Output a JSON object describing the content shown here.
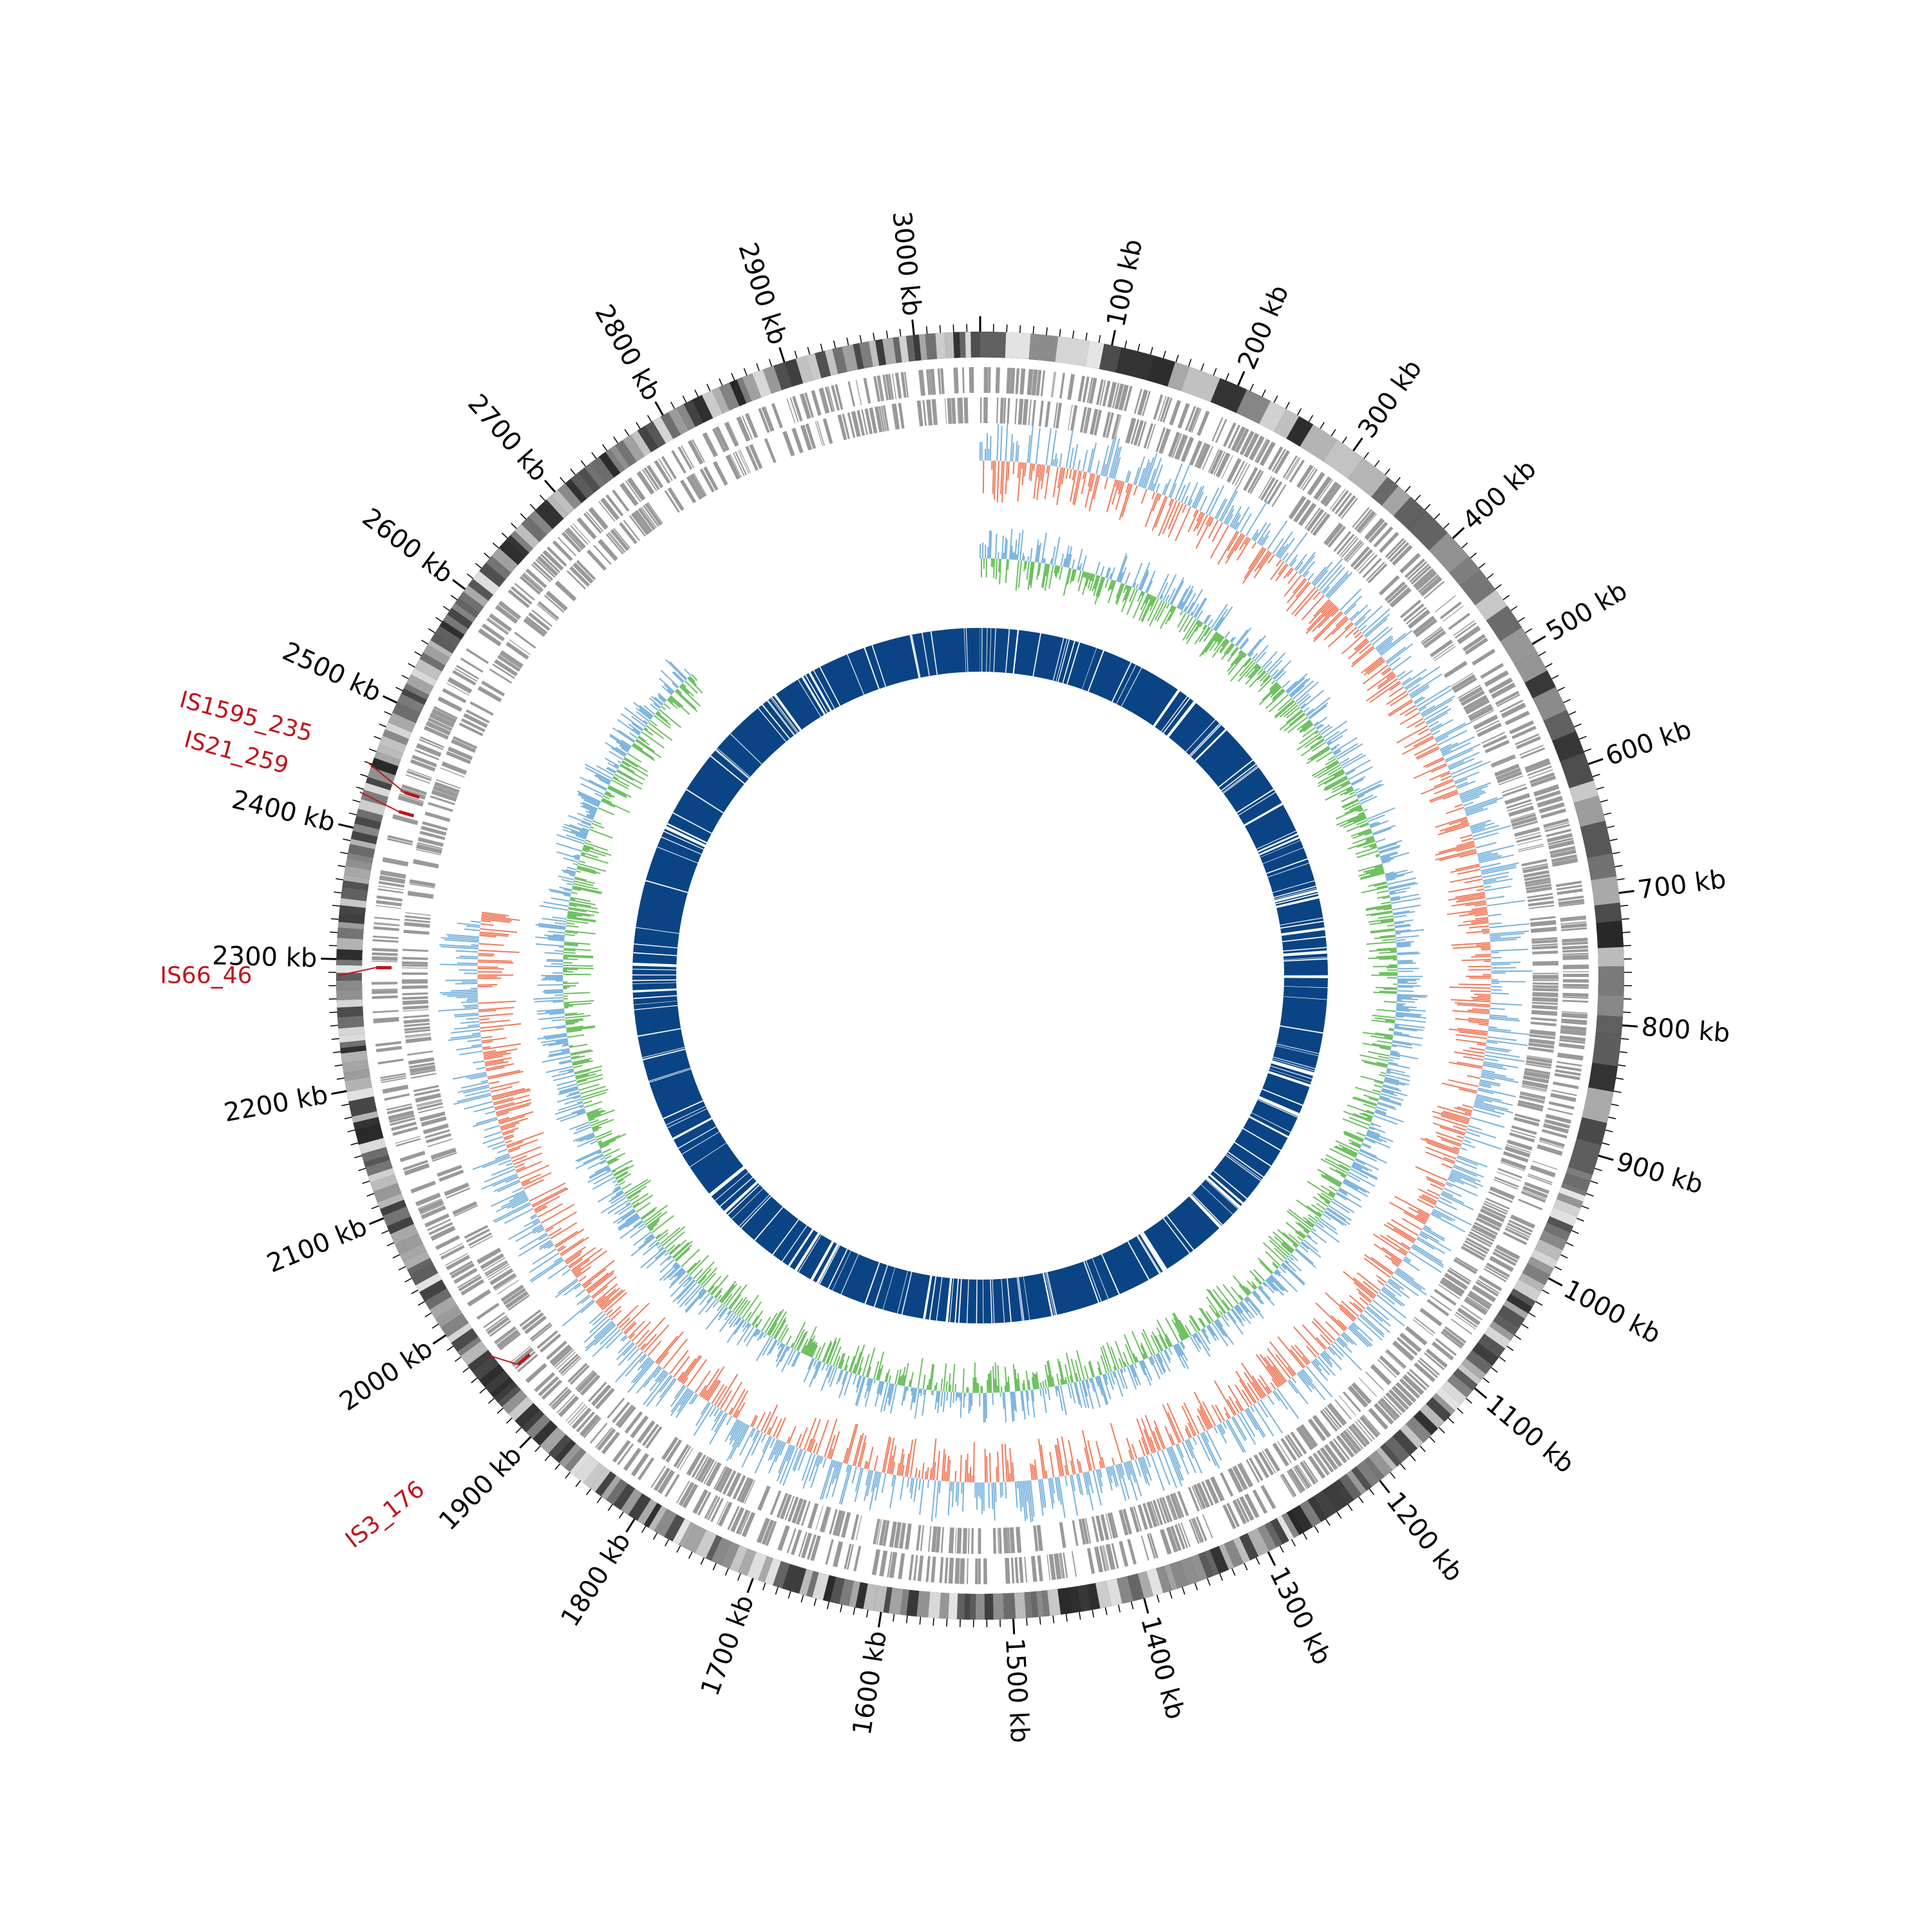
{
  "genome": {
    "length_kb": 3050,
    "tick_unit": "kb",
    "major_ticks_kb": [
      100,
      200,
      300,
      400,
      500,
      600,
      700,
      800,
      900,
      1000,
      1100,
      1200,
      1300,
      1400,
      1500,
      1600,
      1700,
      1800,
      1900,
      2000,
      2100,
      2200,
      2300,
      2400,
      2500,
      2600,
      2700,
      2800,
      2900,
      3000
    ],
    "tick_labels": [
      "100 kb",
      "200 kb",
      "300 kb",
      "400 kb",
      "500 kb",
      "600 kb",
      "700 kb",
      "800 kb",
      "900 kb",
      "1000 kb",
      "1100 kb",
      "1200 kb",
      "1300 kb",
      "1400 kb",
      "1500 kb",
      "1600 kb",
      "1700 kb",
      "1800 kb",
      "1900 kb",
      "2000 kb",
      "2100 kb",
      "2200 kb",
      "2300 kb",
      "2400 kb",
      "2500 kb",
      "2600 kb",
      "2700 kb",
      "2800 kb",
      "2900 kb",
      "3000 kb"
    ]
  },
  "tracks": {
    "colors": {
      "ideogram_dark": "#111111",
      "ideogram_light": "#bbbbbb",
      "gene": "#999999",
      "gc_skew_positive": "#f07a5b",
      "gc_skew_negative": "#7ab3dd",
      "gc_content": "#6cbf5f",
      "coverage": "#0a4484",
      "is_element": "#c0141c"
    },
    "gene_band_start_kb": 0,
    "gene_band_end_kb": 3050,
    "gc_skew_range_kb": [
      0,
      2350
    ],
    "gc_content_range_kb": [
      0,
      2680
    ]
  },
  "is_elements": [
    {
      "label": "IS1595_235",
      "position_kb": 2437
    },
    {
      "label": "IS21_259",
      "position_kb": 2421
    },
    {
      "label": "IS66_46",
      "position_kb": 2294
    },
    {
      "label": "IS3_176",
      "position_kb": 1948
    }
  ]
}
